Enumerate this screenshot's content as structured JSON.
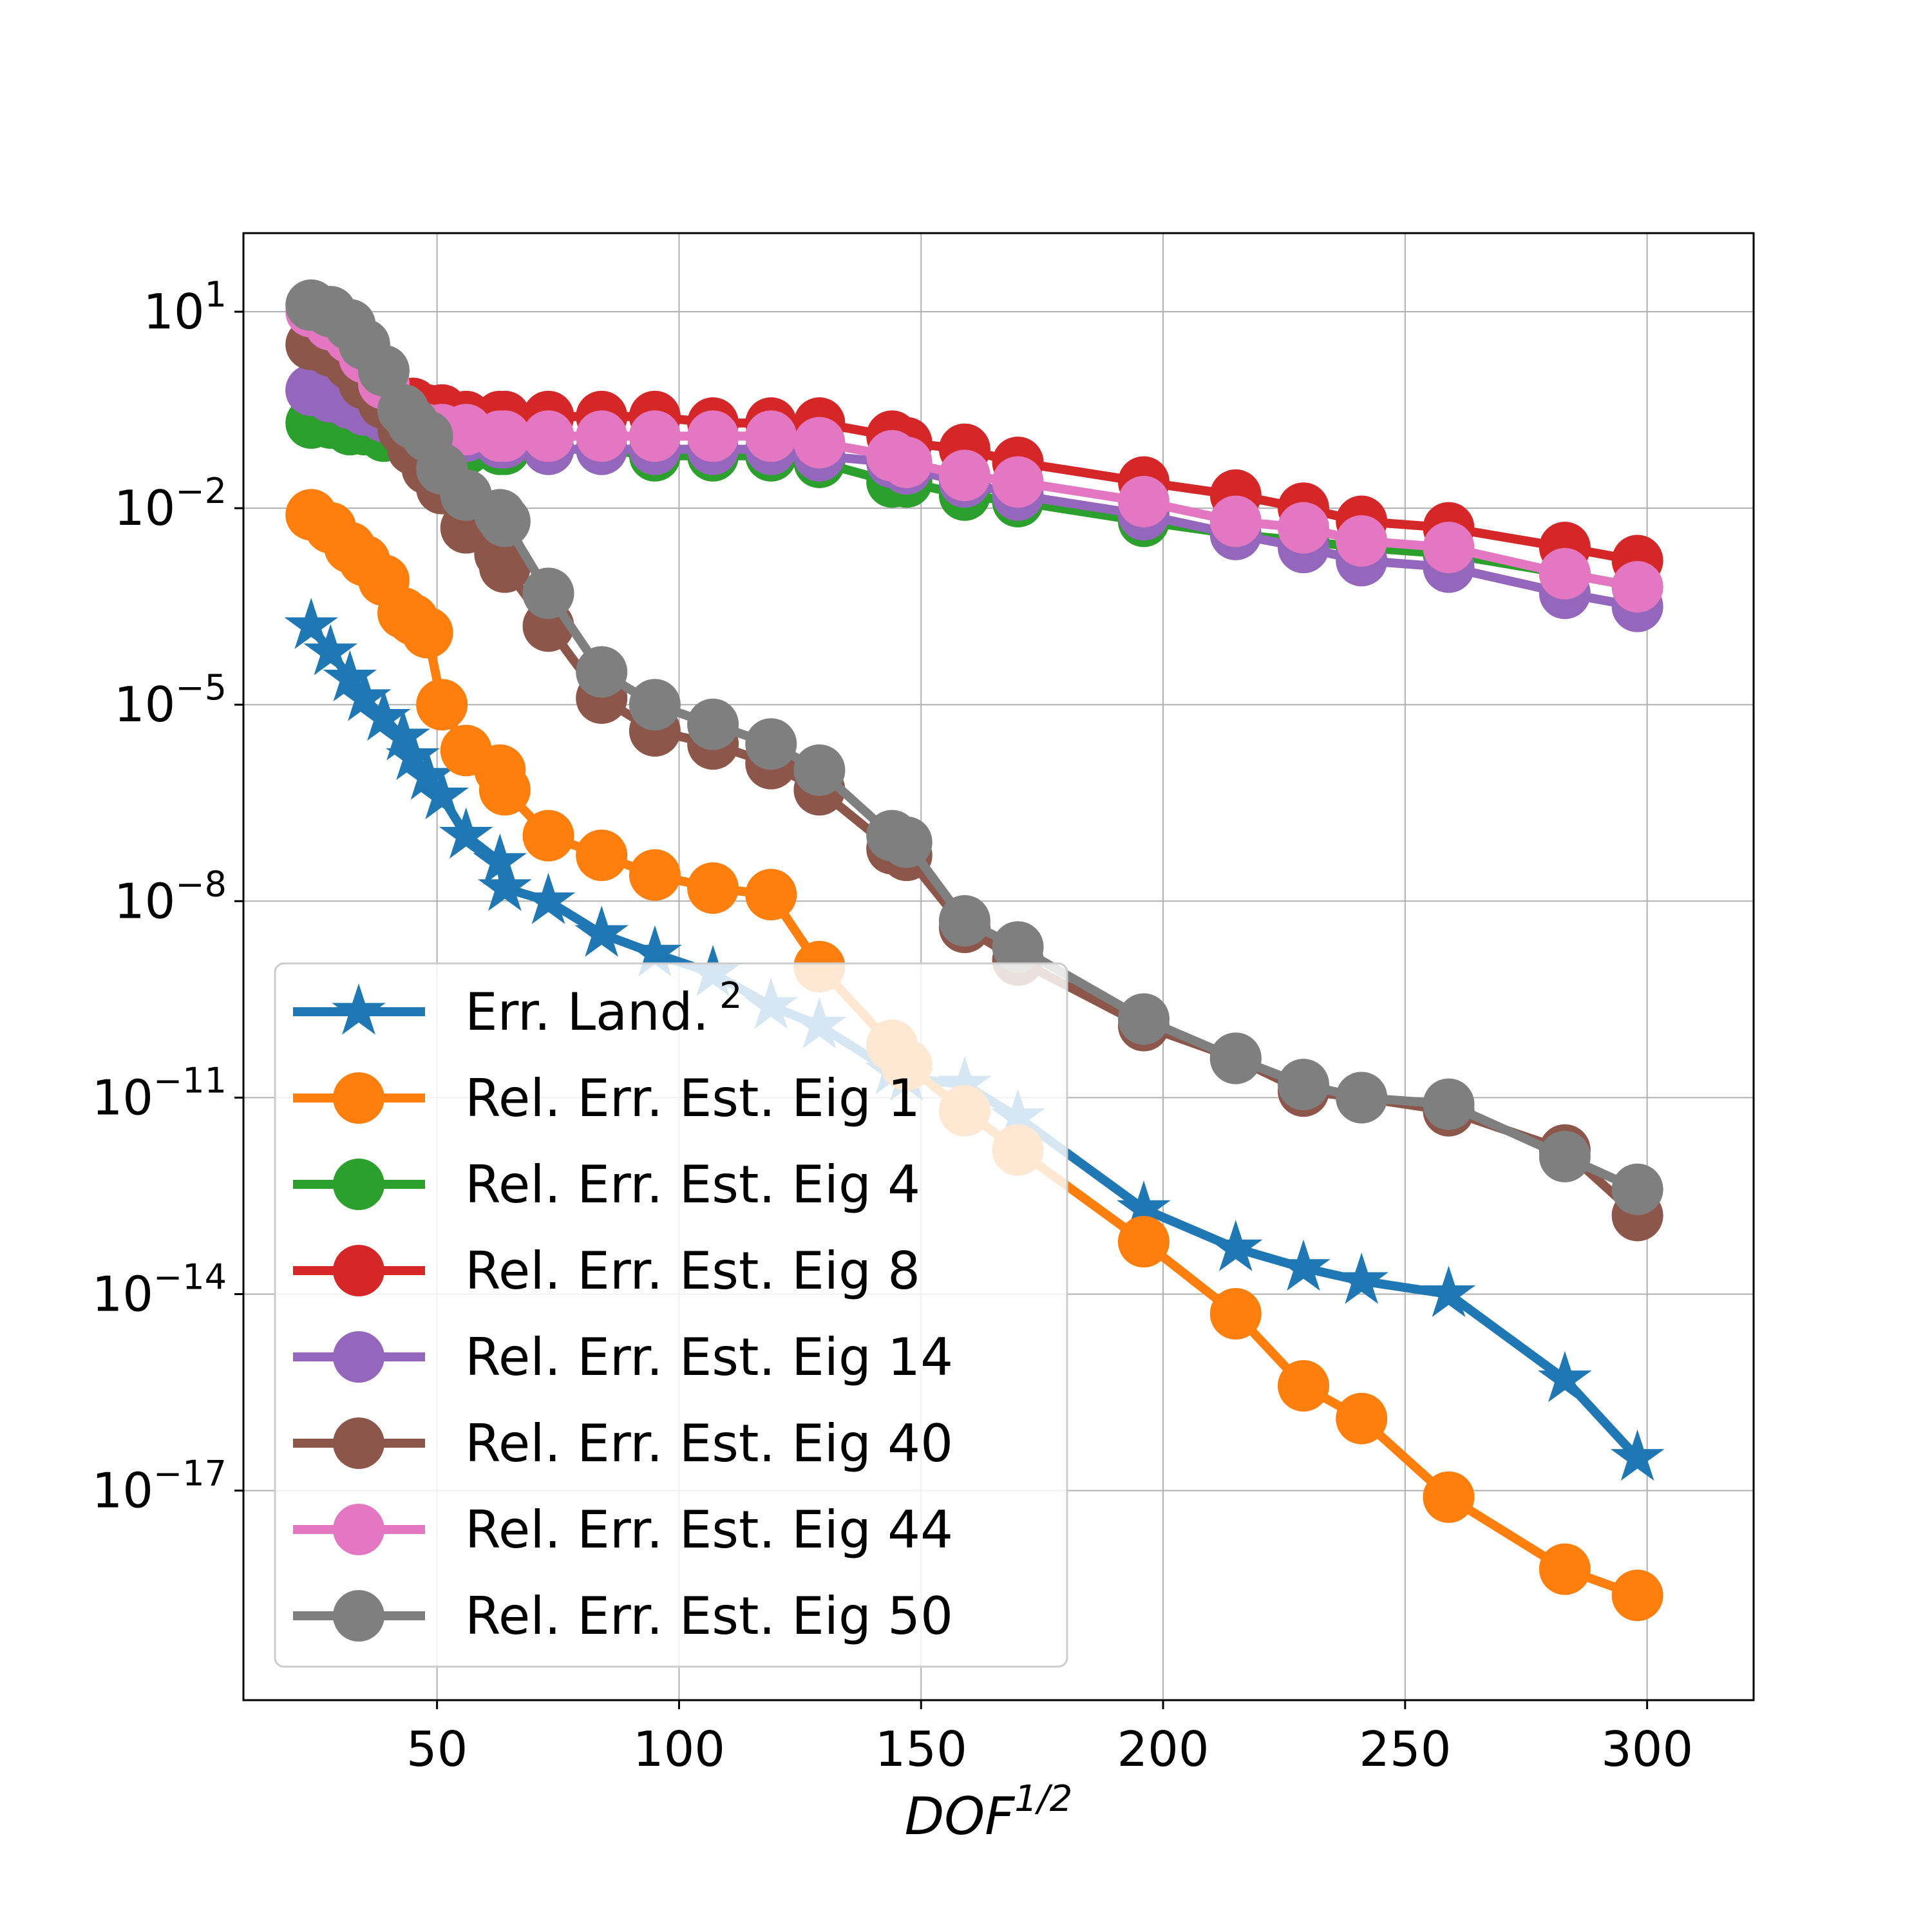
{
  "chart_data": {
    "type": "line",
    "title": "",
    "xlabel": "DOF",
    "xlabel_sup": "1/2",
    "ylabel": "",
    "xscale": "linear",
    "yscale": "log",
    "xlim": [
      10,
      322
    ],
    "ylim_exp": [
      -20.2,
      2.2
    ],
    "xticks": [
      50,
      100,
      150,
      200,
      250,
      300
    ],
    "xtick_labels": [
      "50",
      "100",
      "150",
      "200",
      "250",
      "300"
    ],
    "yticks_exp": [
      1,
      -2,
      -5,
      -8,
      -11,
      -14,
      -17
    ],
    "ytick_labels": [
      {
        "base": "10",
        "exp": "1"
      },
      {
        "base": "10",
        "exp": "−2"
      },
      {
        "base": "10",
        "exp": "−5"
      },
      {
        "base": "10",
        "exp": "−8"
      },
      {
        "base": "10",
        "exp": "−11"
      },
      {
        "base": "10",
        "exp": "−14"
      },
      {
        "base": "10",
        "exp": "−17"
      }
    ],
    "grid": true,
    "legend_position": "lower-left",
    "x": [
      24,
      28,
      32,
      35,
      39,
      43,
      45,
      48,
      51,
      56,
      63,
      64,
      73,
      84,
      95,
      107,
      119,
      129,
      144,
      147,
      159,
      170,
      196,
      215,
      229,
      241,
      259,
      283,
      298
    ],
    "series": [
      {
        "name": "Err. Land.",
        "sup": "2",
        "color": "#1f77b4",
        "marker": "star",
        "values_log10": [
          -3.8,
          -4.2,
          -4.6,
          -4.9,
          -5.2,
          -5.5,
          -5.8,
          -6.1,
          -6.4,
          -7.0,
          -7.4,
          -7.8,
          -8.0,
          -8.5,
          -8.8,
          -9.1,
          -9.6,
          -9.9,
          -10.6,
          -10.7,
          -10.8,
          -11.3,
          -12.7,
          -13.3,
          -13.6,
          -13.8,
          -14.0,
          -15.3,
          -16.5
        ]
      },
      {
        "name": "Rel. Err. Est. Eig 1",
        "color": "#ff7f0e",
        "marker": "circle",
        "values_log10": [
          -2.1,
          -2.3,
          -2.6,
          -2.8,
          -3.1,
          -3.6,
          -3.7,
          -3.9,
          -5.0,
          -5.7,
          -6.0,
          -6.3,
          -7.0,
          -7.3,
          -7.6,
          -7.8,
          -7.9,
          -9.0,
          -10.2,
          -10.5,
          -11.2,
          -11.8,
          -13.2,
          -14.3,
          -15.4,
          -15.9,
          -17.1,
          -18.2,
          -18.6
        ]
      },
      {
        "name": "Rel. Err. Est. Eig 4",
        "color": "#2ca02c",
        "marker": "circle",
        "values_log10": [
          -0.7,
          -0.7,
          -0.8,
          -0.8,
          -0.9,
          -0.9,
          -0.9,
          -1.0,
          -1.0,
          -1.1,
          -1.1,
          -1.1,
          -1.1,
          -1.1,
          -1.2,
          -1.2,
          -1.2,
          -1.3,
          -1.6,
          -1.6,
          -1.8,
          -1.9,
          -2.2,
          -2.4,
          -2.5,
          -2.6,
          -2.7,
          -3.0,
          -3.2
        ]
      },
      {
        "name": "Rel. Err. Est. Eig 8",
        "color": "#d62728",
        "marker": "circle",
        "values_log10": [
          -0.2,
          -0.3,
          -0.3,
          -0.3,
          -0.4,
          -0.4,
          -0.4,
          -0.5,
          -0.5,
          -0.6,
          -0.6,
          -0.6,
          -0.6,
          -0.6,
          -0.6,
          -0.7,
          -0.7,
          -0.7,
          -0.9,
          -1.0,
          -1.1,
          -1.3,
          -1.6,
          -1.8,
          -2.0,
          -2.2,
          -2.3,
          -2.6,
          -2.8
        ]
      },
      {
        "name": "Rel. Err. Est. Eig 14",
        "color": "#9467bd",
        "marker": "circle",
        "values_log10": [
          -0.2,
          -0.3,
          -0.4,
          -0.5,
          -0.6,
          -0.7,
          -0.8,
          -0.8,
          -0.9,
          -0.9,
          -1.0,
          -1.0,
          -1.1,
          -1.1,
          -1.1,
          -1.1,
          -1.1,
          -1.2,
          -1.3,
          -1.4,
          -1.6,
          -1.8,
          -2.1,
          -2.4,
          -2.6,
          -2.8,
          -2.9,
          -3.3,
          -3.5
        ]
      },
      {
        "name": "Rel. Err. Est. Eig 40",
        "color": "#8c564b",
        "marker": "circle",
        "values_log10": [
          0.5,
          0.4,
          0.2,
          -0.1,
          -0.4,
          -0.8,
          -1.1,
          -1.4,
          -1.7,
          -2.3,
          -2.7,
          -2.9,
          -3.8,
          -4.9,
          -5.4,
          -5.6,
          -5.9,
          -6.3,
          -7.2,
          -7.3,
          -8.4,
          -8.9,
          -9.9,
          -10.4,
          -10.9,
          -11.0,
          -11.2,
          -11.8,
          -12.8
        ]
      },
      {
        "name": "Rel. Err. Est. Eig 44",
        "color": "#e377c2",
        "marker": "circle",
        "values_log10": [
          1.0,
          0.8,
          0.6,
          0.3,
          -0.1,
          -0.5,
          -0.7,
          -0.8,
          -0.8,
          -0.8,
          -0.9,
          -0.9,
          -0.9,
          -0.9,
          -0.9,
          -0.9,
          -0.9,
          -1.0,
          -1.2,
          -1.3,
          -1.5,
          -1.6,
          -1.9,
          -2.2,
          -2.3,
          -2.5,
          -2.6,
          -3.0,
          -3.2
        ]
      },
      {
        "name": "Rel. Err. Est. Eig 50",
        "color": "#7f7f7f",
        "marker": "circle",
        "values_log10": [
          1.1,
          1.0,
          0.8,
          0.5,
          0.1,
          -0.5,
          -0.7,
          -0.9,
          -1.4,
          -1.8,
          -2.1,
          -2.2,
          -3.3,
          -4.5,
          -5.0,
          -5.3,
          -5.6,
          -6.0,
          -7.0,
          -7.1,
          -8.3,
          -8.7,
          -9.8,
          -10.4,
          -10.8,
          -11.0,
          -11.1,
          -11.9,
          -12.4
        ]
      }
    ]
  }
}
